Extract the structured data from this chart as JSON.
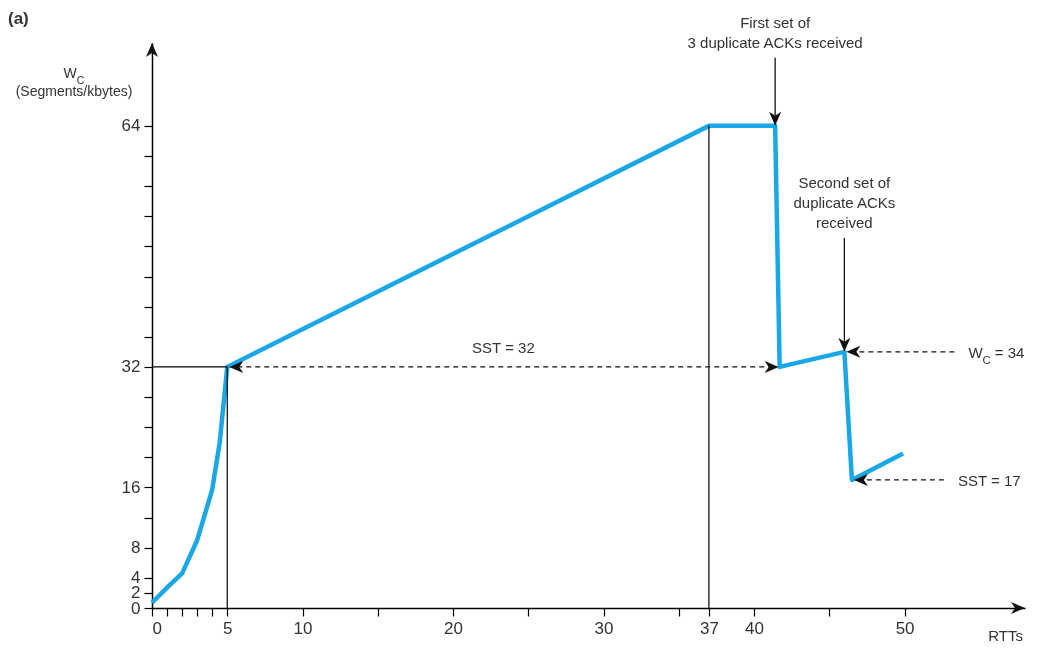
{
  "chart_data": {
    "type": "line",
    "title": "(a)",
    "xlabel": "RTTs",
    "ylabel": "W$_{C}$\n(Segments/kbytes)",
    "xlim": [
      0,
      58
    ],
    "ylim": [
      0,
      75
    ],
    "xticks": [
      0,
      {
        "value": 1,
        "label": null
      },
      {
        "value": 2,
        "label": null
      },
      {
        "value": 3,
        "label": null
      },
      {
        "value": 4,
        "label": null
      },
      5,
      10,
      {
        "value": 15,
        "label": null
      },
      20,
      {
        "value": 25,
        "label": null
      },
      30,
      {
        "value": 35,
        "label": null
      },
      37,
      40,
      {
        "value": 45,
        "label": null
      },
      50
    ],
    "yticks": [
      0,
      2,
      4,
      8,
      {
        "value": 12,
        "label": null
      },
      16,
      {
        "value": 20,
        "label": null
      },
      {
        "value": 24,
        "label": null
      },
      {
        "value": 28,
        "label": null
      },
      32,
      {
        "value": 36,
        "label": null
      },
      {
        "value": 40,
        "label": null
      },
      {
        "value": 44,
        "label": null
      },
      {
        "value": 48,
        "label": null
      },
      {
        "value": 52,
        "label": null
      },
      {
        "value": 56,
        "label": null
      },
      {
        "value": 60,
        "label": null
      },
      64
    ],
    "series": [
      {
        "color": "#1aa7e6",
        "x": [
          0,
          1,
          2,
          3,
          4,
          4.5,
          5,
          37,
          41.4,
          41.7,
          46,
          46.5,
          49.9
        ],
        "values": [
          0.7,
          2.7,
          4.6,
          9,
          15.7,
          22,
          32,
          64,
          64,
          32,
          34,
          17,
          20.5
        ]
      }
    ],
    "ref_lines": [
      {
        "axis": "x",
        "value": 5,
        "color": "#000000"
      },
      {
        "axis": "x",
        "value": 37,
        "color": "#000000"
      },
      {
        "axis": "y",
        "value": 32,
        "color": "#000000"
      }
    ],
    "annotations": [
      {
        "text": "First set of\n3 duplicate ACKs received",
        "x": 41.4,
        "y": 64
      },
      {
        "text": "Second set of\nduplicate ACKs\nreceived",
        "x": 46,
        "y": 34
      },
      "SST = 32",
      {
        "text": "W$_{C}$ = 34",
        "x": 46,
        "y": 34
      },
      {
        "text": "SST = 17",
        "x": 46.5,
        "y": 17
      }
    ]
  }
}
